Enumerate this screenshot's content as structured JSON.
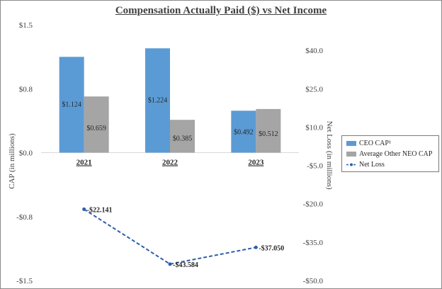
{
  "chart_data": {
    "type": "bar",
    "title": "Compensation Actually Paid ($) vs Net Income",
    "categories": [
      "2021",
      "2022",
      "2023"
    ],
    "series": [
      {
        "name": "CEO CAP¹",
        "type": "bar",
        "axis": "left",
        "color": "#5b9bd5",
        "values": [
          1.124,
          1.224,
          0.492
        ],
        "labels": [
          "$1.124",
          "$1.224",
          "$0.492"
        ]
      },
      {
        "name": "Average Other NEO CAP",
        "type": "bar",
        "axis": "left",
        "color": "#a5a5a5",
        "values": [
          0.659,
          0.385,
          0.512
        ],
        "labels": [
          "$0.659",
          "$0.385",
          "$0.512"
        ]
      },
      {
        "name": "Net Loss",
        "type": "line",
        "axis": "right",
        "color": "#2e5fa8",
        "style": "dashed",
        "values": [
          -22.141,
          -43.584,
          -37.05
        ],
        "labels": [
          "-$22.141",
          "-$43.584",
          "-$37.050"
        ]
      }
    ],
    "left_axis": {
      "label": "CAP (in millions)",
      "ylim": [
        -1.5,
        1.5
      ],
      "ticks": [
        1.5,
        0.75,
        0.0,
        -0.75,
        -1.5
      ],
      "tick_labels": [
        "$1.5",
        "$0.8",
        "$0.0",
        "-$0.8",
        "-$1.5"
      ]
    },
    "right_axis": {
      "label": "Net Loss (in millions)",
      "ylim": [
        -50,
        50
      ],
      "ticks": [
        40,
        25,
        10,
        -5,
        -20,
        -35,
        -50
      ],
      "tick_labels": [
        "$40.0",
        "$25.0",
        "$10.0",
        "-$5.0",
        "-$20.0",
        "-$35.0",
        "-$50.0"
      ]
    },
    "grid": false,
    "legend_position": "right"
  }
}
